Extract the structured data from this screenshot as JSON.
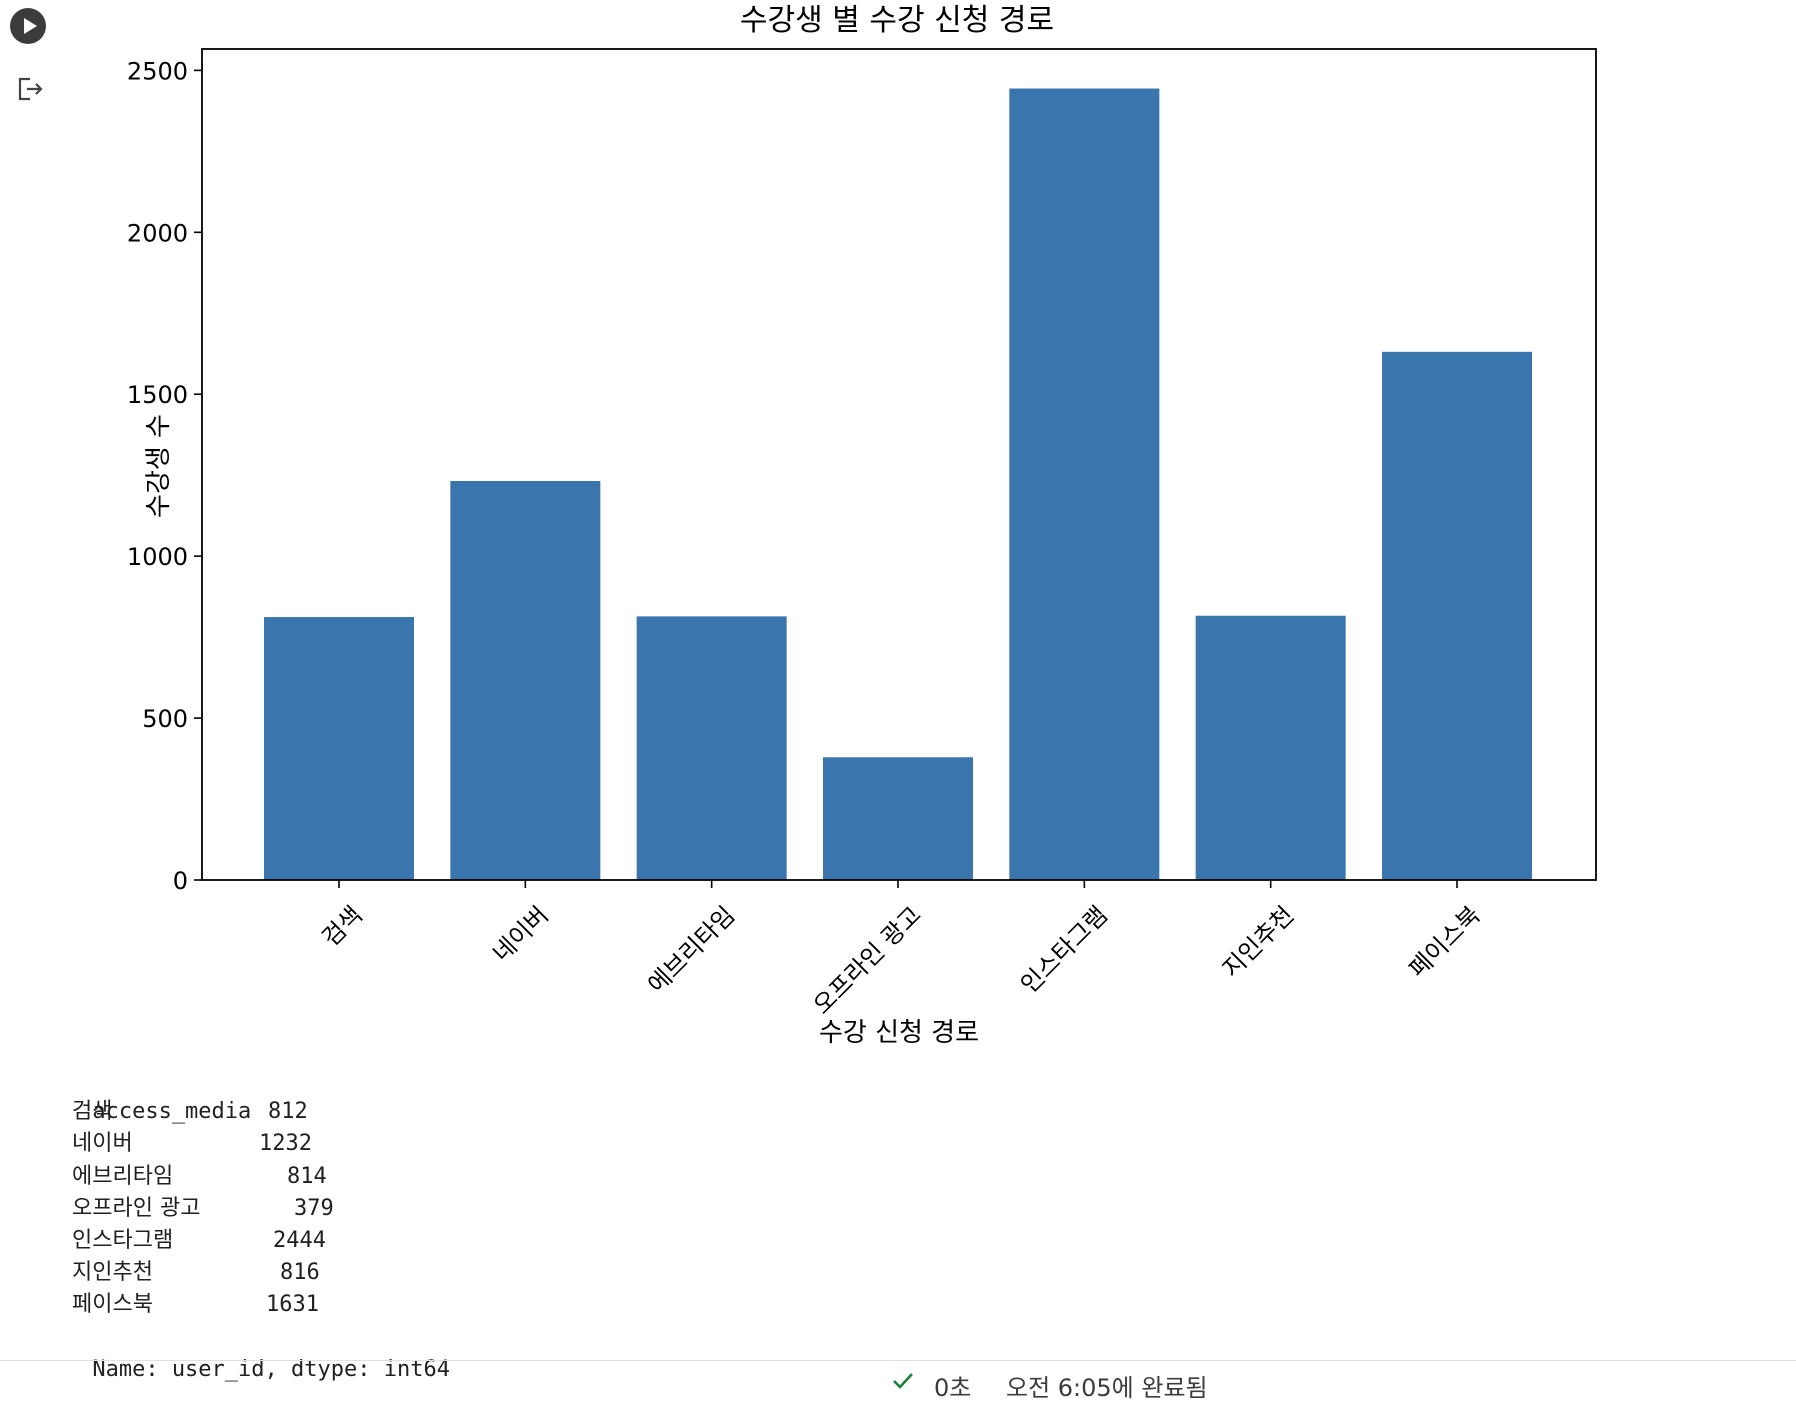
{
  "cell": {
    "run_icon": "play-icon",
    "output_icon": "output-exit-icon"
  },
  "chart_data": {
    "type": "bar",
    "title": "수강생 별 수강 신청 경로",
    "xlabel": "수강 신청 경로",
    "ylabel": "수강생 수",
    "categories": [
      "검색",
      "네이버",
      "에브리타임",
      "오프라인 광고",
      "인스타그램",
      "지인추천",
      "페이스북"
    ],
    "values": [
      812,
      1232,
      814,
      379,
      2444,
      816,
      1631
    ],
    "yticks": [
      0,
      500,
      1000,
      1500,
      2000,
      2500
    ],
    "ylim": [
      0,
      2566
    ],
    "grid": false,
    "bar_color": "#3a75ae"
  },
  "output": {
    "header": "access_media",
    "rows": [
      {
        "label": "검색",
        "value": "812"
      },
      {
        "label": "네이버",
        "value": "1232"
      },
      {
        "label": "에브리타임",
        "value": "814"
      },
      {
        "label": "오프라인 광고",
        "value": "379"
      },
      {
        "label": "인스타그램",
        "value": "2444"
      },
      {
        "label": "지인추천",
        "value": "816"
      },
      {
        "label": "페이스북",
        "value": "1631"
      }
    ],
    "footer": "Name: user_id, dtype: int64"
  },
  "status": {
    "check_icon": "check-icon",
    "duration": "0초",
    "completed": "오전 6:05에 완료됨",
    "check_color": "#188038"
  }
}
